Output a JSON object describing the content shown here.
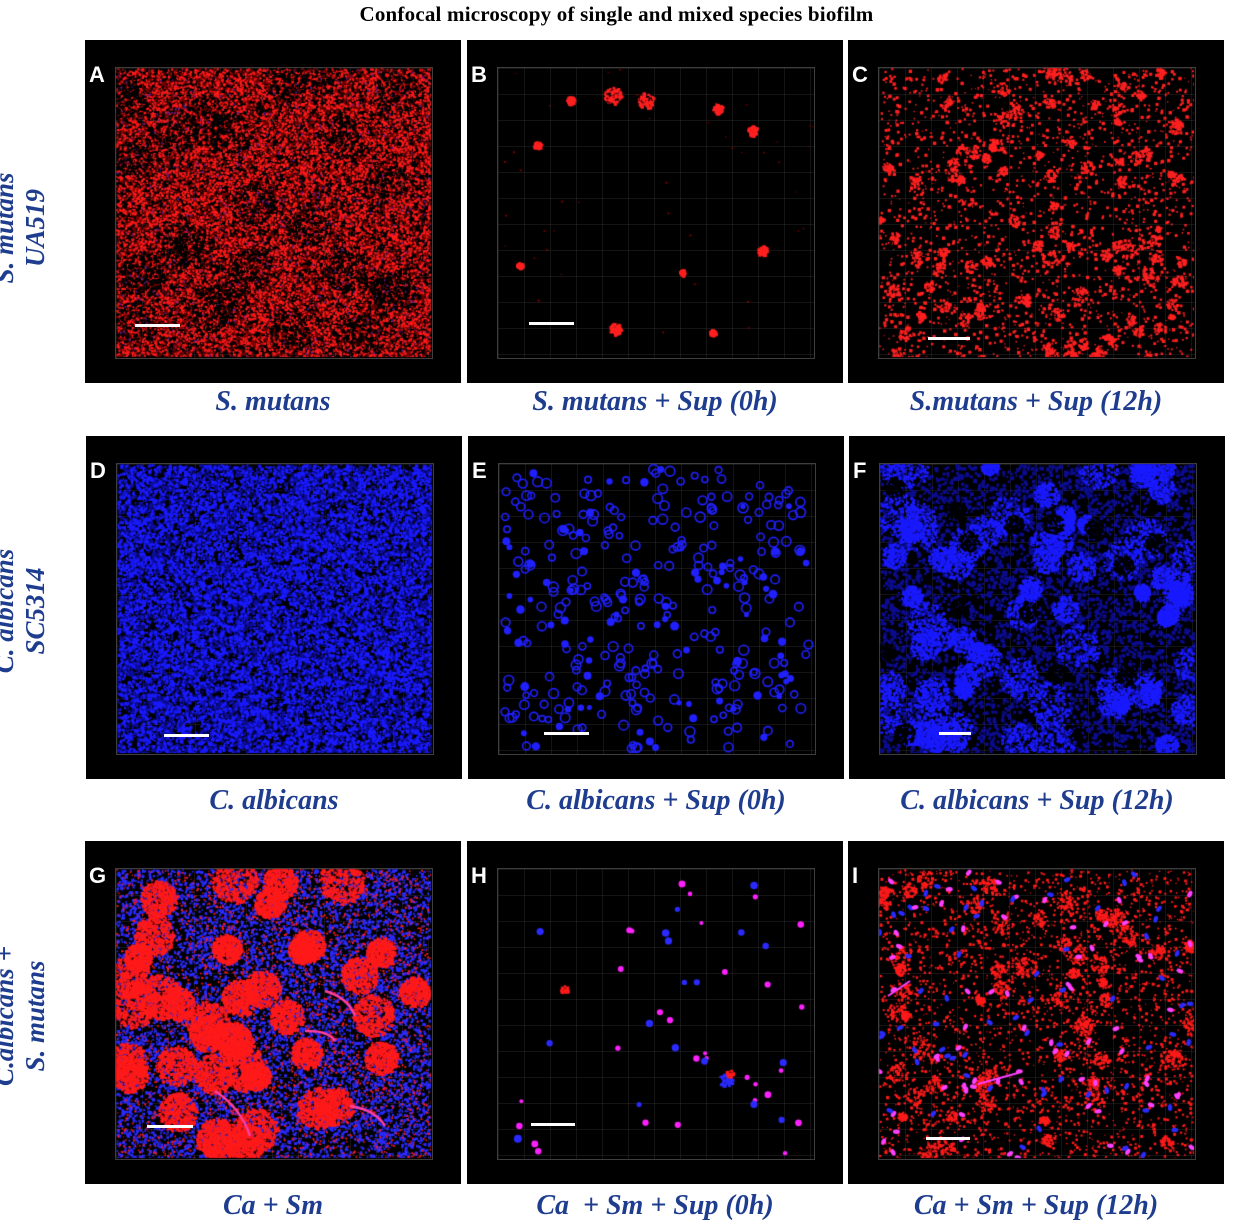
{
  "title": "Confocal microscopy of single and mixed species biofilm",
  "row_labels": [
    [
      "S. mutans",
      "UA519"
    ],
    [
      "C. albicans",
      "SC5314"
    ],
    [
      "C.albicans +",
      "S. mutans"
    ]
  ],
  "panels": [
    {
      "letter": "A",
      "caption": "S. mutans",
      "pattern": "dense-red",
      "colors": [
        "#ff1a1a",
        "#5a1d8f"
      ]
    },
    {
      "letter": "B",
      "caption": "S. mutans + Sup (0h)",
      "pattern": "sparse-red",
      "colors": [
        "#ff2020"
      ]
    },
    {
      "letter": "C",
      "caption": "S.mutans + Sup (12h)",
      "pattern": "patchy-red",
      "colors": [
        "#ff2020"
      ]
    },
    {
      "letter": "D",
      "caption": "C. albicans",
      "pattern": "dense-blue",
      "colors": [
        "#1a1aff"
      ]
    },
    {
      "letter": "E",
      "caption": "C. albicans + Sup (0h)",
      "pattern": "rings-blue",
      "colors": [
        "#2020ff"
      ]
    },
    {
      "letter": "F",
      "caption": "C. albicans + Sup (12h)",
      "pattern": "cloud-blue",
      "colors": [
        "#1a1aff"
      ]
    },
    {
      "letter": "G",
      "caption": "Ca + Sm",
      "pattern": "mixed-dense",
      "colors": [
        "#ff1a1a",
        "#2a2aff",
        "#ff3fa0"
      ]
    },
    {
      "letter": "H",
      "caption": "Ca  + Sm + Sup (0h)",
      "pattern": "mixed-sparse",
      "colors": [
        "#ff20ff",
        "#2a2aff",
        "#ff1a1a"
      ]
    },
    {
      "letter": "I",
      "caption": "Ca + Sm + Sup (12h)",
      "pattern": "mixed-patchy",
      "colors": [
        "#ff1a1a",
        "#2a2aff",
        "#ff40ff"
      ]
    }
  ],
  "background_color": "#000000",
  "caption_color": "#1f3d8f"
}
